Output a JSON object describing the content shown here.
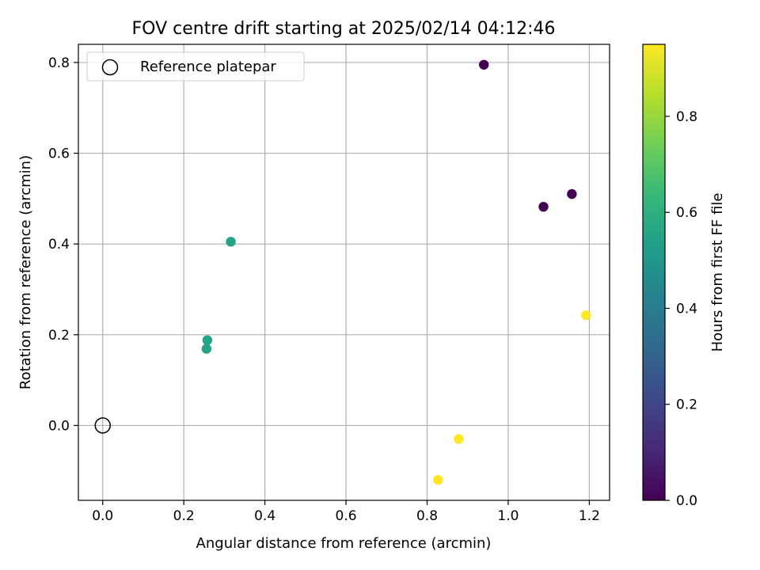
{
  "chart_data": {
    "type": "scatter",
    "title": "FOV centre drift starting at 2025/02/14 04:12:46",
    "xlabel": "Angular distance from reference (arcmin)",
    "ylabel": "Rotation from reference (arcmin)",
    "xlim": [
      -0.06,
      1.25
    ],
    "ylim": [
      -0.165,
      0.84
    ],
    "xticks": [
      0.0,
      0.2,
      0.4,
      0.6,
      0.8,
      1.0,
      1.2
    ],
    "yticks": [
      0.0,
      0.2,
      0.4,
      0.6,
      0.8
    ],
    "xtick_labels": [
      "0.0",
      "0.2",
      "0.4",
      "0.6",
      "0.8",
      "1.0",
      "1.2"
    ],
    "ytick_labels": [
      "0.0",
      "0.2",
      "0.4",
      "0.6",
      "0.8"
    ],
    "grid": true,
    "legend": {
      "position": "top-left",
      "entries": [
        "Reference platepar"
      ]
    },
    "reference_point": {
      "x": 0.0,
      "y": 0.0,
      "label": "Reference platepar"
    },
    "points": [
      {
        "x": 0.94,
        "y": 0.795,
        "hours": 0.0
      },
      {
        "x": 1.087,
        "y": 0.482,
        "hours": 0.0
      },
      {
        "x": 1.157,
        "y": 0.51,
        "hours": 0.0
      },
      {
        "x": 0.316,
        "y": 0.405,
        "hours": 0.55
      },
      {
        "x": 0.258,
        "y": 0.188,
        "hours": 0.55
      },
      {
        "x": 0.256,
        "y": 0.169,
        "hours": 0.55
      },
      {
        "x": 1.192,
        "y": 0.243,
        "hours": 0.95
      },
      {
        "x": 0.878,
        "y": -0.03,
        "hours": 0.95
      },
      {
        "x": 0.827,
        "y": -0.12,
        "hours": 0.95
      }
    ],
    "colorbar": {
      "label": "Hours from first FF file",
      "range": [
        0.0,
        0.95
      ],
      "ticks": [
        0.0,
        0.2,
        0.4,
        0.6,
        0.8
      ],
      "tick_labels": [
        "0.0",
        "0.2",
        "0.4",
        "0.6",
        "0.8"
      ],
      "colormap": [
        "#440154",
        "#482878",
        "#3e4989",
        "#31688e",
        "#26828e",
        "#1f9e89",
        "#35b779",
        "#6ece58",
        "#b5de2b",
        "#fde725"
      ]
    }
  }
}
